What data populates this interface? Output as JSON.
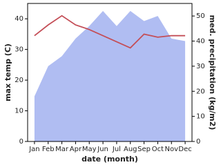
{
  "chart_data": {
    "type": "line-area",
    "categories": [
      "Jan",
      "Feb",
      "Mar",
      "Apr",
      "May",
      "Jun",
      "Jul",
      "Aug",
      "Sep",
      "Oct",
      "Nov",
      "Dec"
    ],
    "x_label": "date (month)",
    "y_label": "max temp (C)",
    "y2_label": "med. precipitation (kg/m2)",
    "series": [
      {
        "name": "med. precipitation",
        "type": "area",
        "axis": "y2",
        "color": "#b0bdf2",
        "values": [
          18,
          30,
          34,
          41,
          46,
          52,
          46,
          52,
          48,
          50,
          41,
          40
        ]
      },
      {
        "name": "max temp",
        "type": "line",
        "axis": "y",
        "color": "#c44e57",
        "values": [
          34.5,
          38,
          41,
          38,
          36.5,
          34.5,
          32.5,
          30.5,
          35,
          34,
          34.5,
          34.5
        ]
      }
    ],
    "ylim": [
      0,
      45
    ],
    "yticks": [
      0,
      10,
      20,
      30,
      40
    ],
    "y2lim": [
      0,
      55
    ],
    "y2ticks": [
      0,
      10,
      20,
      30,
      40,
      50
    ]
  }
}
